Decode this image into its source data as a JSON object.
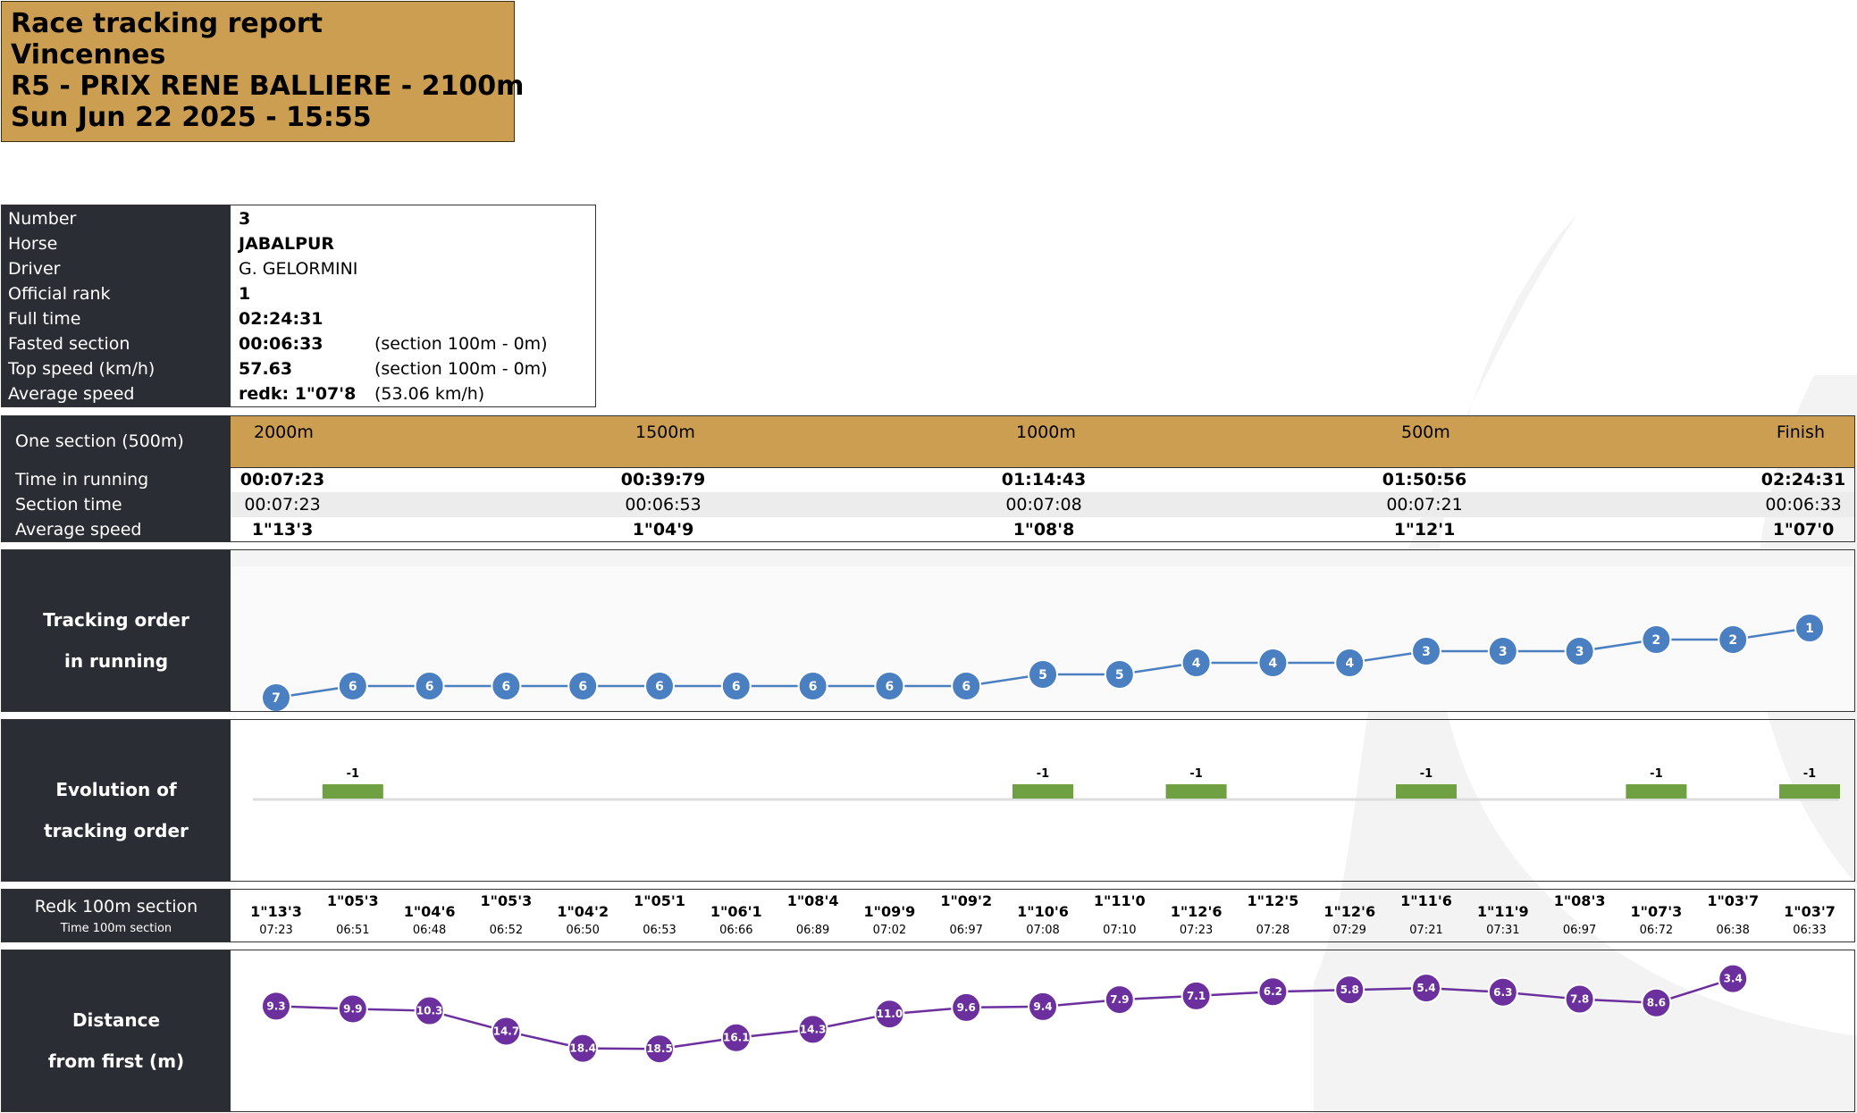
{
  "header": {
    "line1": "Race tracking report",
    "line2": "Vincennes",
    "line3": "R5 - PRIX RENE BALLIERE - 2100m",
    "line4": "Sun Jun 22 2025 - 15:55"
  },
  "info": [
    {
      "label": "Number",
      "value": "3",
      "note": ""
    },
    {
      "label": "Horse",
      "value": "JABALPUR",
      "note": ""
    },
    {
      "label": "Driver",
      "value": "G. GELORMINI",
      "note": ""
    },
    {
      "label": "Official rank",
      "value": "1",
      "note": ""
    },
    {
      "label": "Full time",
      "value": "02:24:31",
      "note": ""
    },
    {
      "label": "Fasted section",
      "value": "00:06:33",
      "note": "(section 100m - 0m)"
    },
    {
      "label": "Top speed (km/h)",
      "value": "57.63",
      "note": "(section 100m - 0m)"
    },
    {
      "label": "Average speed",
      "value": "redk: 1\"07'8",
      "note": "(53.06 km/h)"
    }
  ],
  "sections": {
    "label": "One section (500m)",
    "row_labels": [
      "Time in running",
      "Section time",
      "Average speed"
    ],
    "columns": [
      {
        "head": "2000m",
        "time": "00:07:23",
        "section": "00:07:23",
        "speed": "1\"13'3"
      },
      {
        "head": "1500m",
        "time": "00:39:79",
        "section": "00:06:53",
        "speed": "1\"04'9"
      },
      {
        "head": "1000m",
        "time": "01:14:43",
        "section": "00:07:08",
        "speed": "1\"08'8"
      },
      {
        "head": "500m",
        "time": "01:50:56",
        "section": "00:07:21",
        "speed": "1\"12'1"
      },
      {
        "head": "Finish",
        "time": "02:24:31",
        "section": "00:06:33",
        "speed": "1\"07'0"
      }
    ]
  },
  "panels": {
    "tracking_label1": "Tracking order",
    "tracking_label2": "in running",
    "evolution_label1": "Evolution of",
    "evolution_label2": "tracking order",
    "redk_label1": "Redk 100m section",
    "redk_label2": "Time 100m section",
    "distance_label1": "Distance",
    "distance_label2": "from first (m)"
  },
  "colors": {
    "accent": "#cc9e52",
    "dark": "#2a2d34",
    "position": "#4a7fc1",
    "distance": "#6b2f9e",
    "evolution": "#6fa042"
  },
  "chart_data": [
    {
      "type": "line",
      "name": "tracking_order",
      "values": [
        7,
        6,
        6,
        6,
        6,
        6,
        6,
        6,
        6,
        6,
        5,
        5,
        4,
        4,
        4,
        3,
        3,
        3,
        2,
        2,
        1
      ],
      "ylim": [
        7,
        1
      ]
    },
    {
      "type": "bar",
      "name": "evolution",
      "values": [
        0,
        -1,
        0,
        0,
        0,
        0,
        0,
        0,
        0,
        0,
        -1,
        0,
        -1,
        0,
        0,
        -1,
        0,
        0,
        -1,
        0,
        -1
      ]
    },
    {
      "type": "table",
      "name": "redk_100m",
      "redk": [
        "1\"13'3",
        "1\"05'3",
        "1\"04'6",
        "1\"05'3",
        "1\"04'2",
        "1\"05'1",
        "1\"06'1",
        "1\"08'4",
        "1\"09'9",
        "1\"09'2",
        "1\"10'6",
        "1\"11'0",
        "1\"12'6",
        "1\"12'5",
        "1\"12'6",
        "1\"11'6",
        "1\"11'9",
        "1\"08'3",
        "1\"07'3",
        "1\"03'7",
        "1\"03'7"
      ],
      "times": [
        "07:23",
        "06:51",
        "06:48",
        "06:52",
        "06:50",
        "06:53",
        "06:66",
        "06:89",
        "07:02",
        "06:97",
        "07:08",
        "07:10",
        "07:23",
        "07:28",
        "07:29",
        "07:21",
        "07:31",
        "06:97",
        "06:72",
        "06:38",
        "06:33"
      ]
    },
    {
      "type": "line",
      "name": "distance_from_first",
      "values": [
        9.3,
        9.9,
        10.3,
        14.7,
        18.4,
        18.5,
        16.1,
        14.3,
        11.0,
        9.6,
        9.4,
        7.9,
        7.1,
        6.2,
        5.8,
        5.4,
        6.3,
        7.8,
        8.6,
        3.4
      ]
    }
  ]
}
